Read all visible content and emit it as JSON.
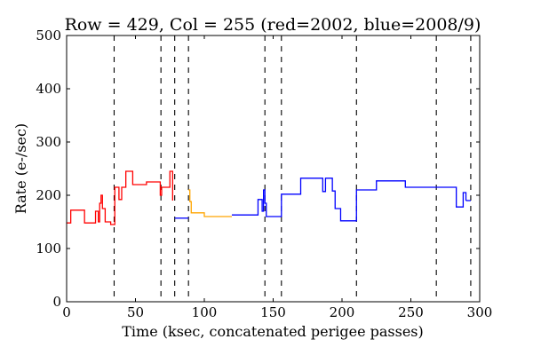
{
  "chart_data": {
    "type": "line",
    "title": "Row = 429, Col = 255 (red=2002, blue=2008/9)",
    "xlabel": "Time (ksec, concatenated perigee passes)",
    "ylabel": "Rate (e-/sec)",
    "xlim": [
      0,
      300
    ],
    "ylim": [
      0,
      500
    ],
    "xticks": [
      "0",
      "50",
      "100",
      "150",
      "200",
      "250",
      "300"
    ],
    "yticks": [
      "0",
      "100",
      "200",
      "300",
      "400",
      "500"
    ],
    "grid": false,
    "step": true,
    "separators": [
      34.5,
      68.5,
      78.5,
      88.5,
      144,
      156,
      210.5,
      268.5,
      293.5
    ],
    "series": [
      {
        "color": "#ff0000",
        "x": [
          0,
          3,
          13,
          21,
          23,
          24,
          25,
          26,
          28,
          32,
          35,
          38,
          40,
          43,
          48,
          58,
          68,
          69,
          75,
          77
        ],
        "y": [
          148,
          172,
          148,
          170,
          150,
          185,
          200,
          175,
          150,
          145,
          215,
          192,
          215,
          245,
          220,
          225,
          200,
          215,
          245,
          190
        ]
      },
      {
        "color": "#ffa500",
        "x": [
          88.5,
          89.5,
          90.5,
          100,
          120
        ],
        "y": [
          210,
          188,
          167,
          160,
          160
        ]
      },
      {
        "color": "#0000ff",
        "x": [
          78.5,
          88.5
        ],
        "y": [
          157,
          157
        ]
      },
      {
        "color": "#0000ff",
        "x": [
          120,
          139,
          142,
          143,
          144,
          145,
          147,
          156,
          170,
          185,
          186,
          188,
          193,
          195,
          199,
          210.5,
          225,
          246,
          268.5,
          283,
          288,
          290
        ],
        "y": [
          163,
          192,
          170,
          210,
          185,
          160,
          160,
          202,
          232,
          232,
          207,
          232,
          208,
          175,
          152,
          210,
          227,
          215,
          215,
          178,
          205,
          190
        ]
      },
      {
        "color": "#0000ff",
        "x": [
          290,
          293.5
        ],
        "y": [
          190,
          190
        ]
      }
    ]
  }
}
